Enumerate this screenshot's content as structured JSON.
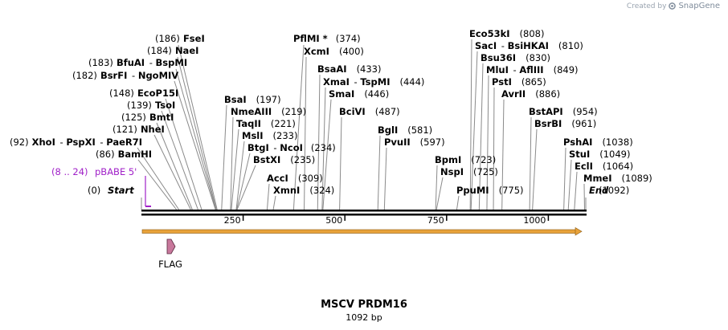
{
  "credit": {
    "prefix": "Created by",
    "brand": "SnapGene"
  },
  "title": "MSCV PRDM16",
  "subtitle": "1092 bp",
  "sequence_length": 1092,
  "start_label": {
    "pos": "(0)",
    "name": "Start"
  },
  "end_label": {
    "name": "End",
    "pos": "(1092)"
  },
  "primer": {
    "range": "(8 .. 24)",
    "name": "pBABE 5'",
    "color": "#a020c8"
  },
  "feature": {
    "name": "FLAG",
    "color": "#c8789c"
  },
  "orf_color": "#e8a23a",
  "ticks": [
    250,
    500,
    750,
    1000
  ],
  "sites": [
    {
      "name": "FseI",
      "pos": "(186)"
    },
    {
      "name": "NaeI",
      "pos": "(184)"
    },
    {
      "name": "BfuAI",
      "name2": "BspMI",
      "pos": "(183)"
    },
    {
      "name": "BsrFI",
      "name2": "NgoMIV",
      "pos": "(182)"
    },
    {
      "name": "EcoP15I",
      "pos": "(148)"
    },
    {
      "name": "TsoI",
      "pos": "(139)"
    },
    {
      "name": "BmtI",
      "pos": "(125)"
    },
    {
      "name": "NheI",
      "pos": "(121)"
    },
    {
      "name": "XhoI",
      "name2": "PspXI",
      "name3": "PaeR7I",
      "pos": "(92)"
    },
    {
      "name": "BamHI",
      "pos": "(86)"
    },
    {
      "name": "BsaI",
      "pos": "(197)"
    },
    {
      "name": "NmeAIII",
      "pos": "(219)"
    },
    {
      "name": "TaqII",
      "pos": "(221)"
    },
    {
      "name": "MslI",
      "pos": "(233)"
    },
    {
      "name": "BtgI",
      "name2": "NcoI",
      "pos": "(234)"
    },
    {
      "name": "BstXI",
      "pos": "(235)"
    },
    {
      "name": "PflMI *",
      "pos": "(374)"
    },
    {
      "name": "XcmI",
      "pos": "(400)"
    },
    {
      "name": "AccI",
      "pos": "(309)"
    },
    {
      "name": "XmnI",
      "pos": "(324)"
    },
    {
      "name": "BsaAI",
      "pos": "(433)"
    },
    {
      "name": "XmaI",
      "name2": "TspMI",
      "pos": "(444)"
    },
    {
      "name": "SmaI",
      "pos": "(446)"
    },
    {
      "name": "BciVI",
      "pos": "(487)"
    },
    {
      "name": "BglI",
      "pos": "(581)"
    },
    {
      "name": "PvuII",
      "pos": "(597)"
    },
    {
      "name": "Eco53kI",
      "pos": "(808)"
    },
    {
      "name": "SacI",
      "name2": "BsiHKAI",
      "pos": "(810)"
    },
    {
      "name": "Bsu36I",
      "pos": "(830)"
    },
    {
      "name": "MluI",
      "name2": "AflIII",
      "pos": "(849)"
    },
    {
      "name": "PstI",
      "pos": "(865)"
    },
    {
      "name": "AvrII",
      "pos": "(886)"
    },
    {
      "name": "BpmI",
      "pos": "(723)"
    },
    {
      "name": "NspI",
      "pos": "(725)"
    },
    {
      "name": "PpuMI",
      "pos": "(775)"
    },
    {
      "name": "BstAPI",
      "pos": "(954)"
    },
    {
      "name": "BsrBI",
      "pos": "(961)"
    },
    {
      "name": "PshAI",
      "pos": "(1038)"
    },
    {
      "name": "StuI",
      "pos": "(1049)"
    },
    {
      "name": "EclI",
      "pos": "(1064)"
    },
    {
      "name": "MmeI",
      "pos": "(1089)"
    }
  ]
}
